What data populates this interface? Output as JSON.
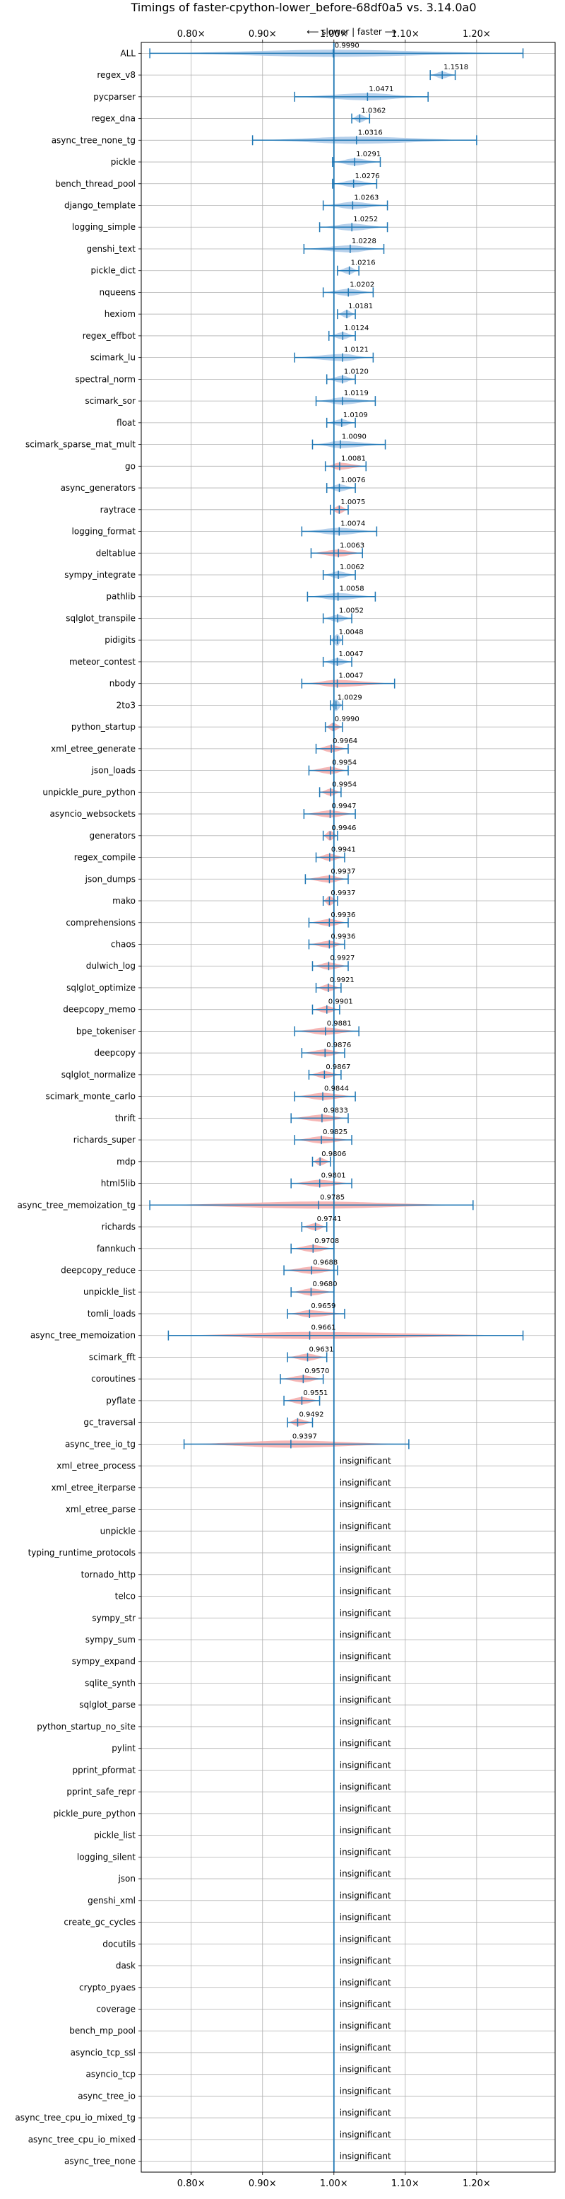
{
  "chart_data": {
    "type": "violin",
    "title": "Timings of faster-cpython-lower_before-68df0a5 vs. 3.14.0a0",
    "direction_label": "⟵ slower | faster ⟶",
    "x_scale": "ratio",
    "xlim": [
      0.73,
      1.31
    ],
    "x_ticks": [
      0.8,
      0.9,
      1.0,
      1.1,
      1.2
    ],
    "x_tick_labels": [
      "0.80×",
      "0.90×",
      "1.00×",
      "1.10×",
      "1.20×"
    ],
    "grid": true,
    "insignificant_label": "insignificant",
    "colors": {
      "faster": "#a9c8e8",
      "slower": "#f4a9a8",
      "whisker": "#1f77b4",
      "reference": "#1f77b4",
      "grid": "#b0b0b0"
    },
    "benchmarks": [
      {
        "name": "ALL",
        "value": 0.999,
        "min": 0.742,
        "max": 1.265,
        "significant": true,
        "change": "none"
      },
      {
        "name": "regex_v8",
        "value": 1.1518,
        "min": 1.135,
        "max": 1.17,
        "significant": true,
        "change": "faster"
      },
      {
        "name": "pycparser",
        "value": 1.0471,
        "min": 0.945,
        "max": 1.132,
        "significant": true,
        "change": "faster"
      },
      {
        "name": "regex_dna",
        "value": 1.0362,
        "min": 1.025,
        "max": 1.05,
        "significant": true,
        "change": "faster"
      },
      {
        "name": "async_tree_none_tg",
        "value": 1.0316,
        "min": 0.886,
        "max": 1.2,
        "significant": true,
        "change": "faster"
      },
      {
        "name": "pickle",
        "value": 1.0291,
        "min": 0.998,
        "max": 1.065,
        "significant": true,
        "change": "faster"
      },
      {
        "name": "bench_thread_pool",
        "value": 1.0276,
        "min": 0.998,
        "max": 1.06,
        "significant": true,
        "change": "faster"
      },
      {
        "name": "django_template",
        "value": 1.0263,
        "min": 0.985,
        "max": 1.075,
        "significant": true,
        "change": "faster"
      },
      {
        "name": "logging_simple",
        "value": 1.0252,
        "min": 0.98,
        "max": 1.075,
        "significant": true,
        "change": "faster"
      },
      {
        "name": "genshi_text",
        "value": 1.0228,
        "min": 0.958,
        "max": 1.07,
        "significant": true,
        "change": "faster"
      },
      {
        "name": "pickle_dict",
        "value": 1.0216,
        "min": 1.005,
        "max": 1.035,
        "significant": true,
        "change": "faster"
      },
      {
        "name": "nqueens",
        "value": 1.0202,
        "min": 0.985,
        "max": 1.055,
        "significant": true,
        "change": "faster"
      },
      {
        "name": "hexiom",
        "value": 1.0181,
        "min": 1.005,
        "max": 1.03,
        "significant": true,
        "change": "faster"
      },
      {
        "name": "regex_effbot",
        "value": 1.0124,
        "min": 0.993,
        "max": 1.03,
        "significant": true,
        "change": "faster"
      },
      {
        "name": "scimark_lu",
        "value": 1.0121,
        "min": 0.945,
        "max": 1.055,
        "significant": true,
        "change": "faster"
      },
      {
        "name": "spectral_norm",
        "value": 1.012,
        "min": 0.99,
        "max": 1.03,
        "significant": true,
        "change": "faster"
      },
      {
        "name": "scimark_sor",
        "value": 1.0119,
        "min": 0.975,
        "max": 1.058,
        "significant": true,
        "change": "faster"
      },
      {
        "name": "float",
        "value": 1.0109,
        "min": 0.99,
        "max": 1.03,
        "significant": true,
        "change": "faster"
      },
      {
        "name": "scimark_sparse_mat_mult",
        "value": 1.009,
        "min": 0.97,
        "max": 1.072,
        "significant": true,
        "change": "faster"
      },
      {
        "name": "go",
        "value": 1.0081,
        "min": 0.988,
        "max": 1.045,
        "significant": true,
        "change": "slower"
      },
      {
        "name": "async_generators",
        "value": 1.0076,
        "min": 0.99,
        "max": 1.03,
        "significant": true,
        "change": "faster"
      },
      {
        "name": "raytrace",
        "value": 1.0075,
        "min": 0.995,
        "max": 1.02,
        "significant": true,
        "change": "slower"
      },
      {
        "name": "logging_format",
        "value": 1.0074,
        "min": 0.955,
        "max": 1.06,
        "significant": true,
        "change": "faster"
      },
      {
        "name": "deltablue",
        "value": 1.0063,
        "min": 0.968,
        "max": 1.04,
        "significant": true,
        "change": "slower"
      },
      {
        "name": "sympy_integrate",
        "value": 1.0062,
        "min": 0.985,
        "max": 1.03,
        "significant": true,
        "change": "faster"
      },
      {
        "name": "pathlib",
        "value": 1.0058,
        "min": 0.963,
        "max": 1.058,
        "significant": true,
        "change": "faster"
      },
      {
        "name": "sqlglot_transpile",
        "value": 1.0052,
        "min": 0.985,
        "max": 1.025,
        "significant": true,
        "change": "faster"
      },
      {
        "name": "pidigits",
        "value": 1.0048,
        "min": 0.995,
        "max": 1.012,
        "significant": true,
        "change": "faster"
      },
      {
        "name": "meteor_contest",
        "value": 1.0047,
        "min": 0.985,
        "max": 1.025,
        "significant": true,
        "change": "faster"
      },
      {
        "name": "nbody",
        "value": 1.0047,
        "min": 0.955,
        "max": 1.085,
        "significant": true,
        "change": "slower"
      },
      {
        "name": "2to3",
        "value": 1.0029,
        "min": 0.995,
        "max": 1.012,
        "significant": true,
        "change": "faster"
      },
      {
        "name": "python_startup",
        "value": 0.999,
        "min": 0.988,
        "max": 1.012,
        "significant": true,
        "change": "slower"
      },
      {
        "name": "xml_etree_generate",
        "value": 0.9964,
        "min": 0.975,
        "max": 1.02,
        "significant": true,
        "change": "slower"
      },
      {
        "name": "json_loads",
        "value": 0.9954,
        "min": 0.965,
        "max": 1.02,
        "significant": true,
        "change": "slower"
      },
      {
        "name": "unpickle_pure_python",
        "value": 0.9954,
        "min": 0.98,
        "max": 1.01,
        "significant": true,
        "change": "slower"
      },
      {
        "name": "asyncio_websockets",
        "value": 0.9947,
        "min": 0.958,
        "max": 1.03,
        "significant": true,
        "change": "slower"
      },
      {
        "name": "generators",
        "value": 0.9946,
        "min": 0.985,
        "max": 1.005,
        "significant": true,
        "change": "slower"
      },
      {
        "name": "regex_compile",
        "value": 0.9941,
        "min": 0.975,
        "max": 1.015,
        "significant": true,
        "change": "slower"
      },
      {
        "name": "json_dumps",
        "value": 0.9937,
        "min": 0.96,
        "max": 1.02,
        "significant": true,
        "change": "slower"
      },
      {
        "name": "mako",
        "value": 0.9937,
        "min": 0.985,
        "max": 1.005,
        "significant": true,
        "change": "slower"
      },
      {
        "name": "comprehensions",
        "value": 0.9936,
        "min": 0.965,
        "max": 1.02,
        "significant": true,
        "change": "slower"
      },
      {
        "name": "chaos",
        "value": 0.9936,
        "min": 0.965,
        "max": 1.015,
        "significant": true,
        "change": "slower"
      },
      {
        "name": "dulwich_log",
        "value": 0.9927,
        "min": 0.97,
        "max": 1.02,
        "significant": true,
        "change": "slower"
      },
      {
        "name": "sqlglot_optimize",
        "value": 0.9921,
        "min": 0.975,
        "max": 1.01,
        "significant": true,
        "change": "slower"
      },
      {
        "name": "deepcopy_memo",
        "value": 0.9901,
        "min": 0.97,
        "max": 1.008,
        "significant": true,
        "change": "slower"
      },
      {
        "name": "bpe_tokeniser",
        "value": 0.9881,
        "min": 0.945,
        "max": 1.035,
        "significant": true,
        "change": "slower"
      },
      {
        "name": "deepcopy",
        "value": 0.9876,
        "min": 0.955,
        "max": 1.015,
        "significant": true,
        "change": "slower"
      },
      {
        "name": "sqlglot_normalize",
        "value": 0.9867,
        "min": 0.965,
        "max": 1.01,
        "significant": true,
        "change": "slower"
      },
      {
        "name": "scimark_monte_carlo",
        "value": 0.9844,
        "min": 0.945,
        "max": 1.03,
        "significant": true,
        "change": "slower"
      },
      {
        "name": "thrift",
        "value": 0.9833,
        "min": 0.94,
        "max": 1.02,
        "significant": true,
        "change": "slower"
      },
      {
        "name": "richards_super",
        "value": 0.9825,
        "min": 0.945,
        "max": 1.025,
        "significant": true,
        "change": "slower"
      },
      {
        "name": "mdp",
        "value": 0.9806,
        "min": 0.97,
        "max": 0.995,
        "significant": true,
        "change": "slower"
      },
      {
        "name": "html5lib",
        "value": 0.9801,
        "min": 0.94,
        "max": 1.025,
        "significant": true,
        "change": "slower"
      },
      {
        "name": "async_tree_memoization_tg",
        "value": 0.9785,
        "min": 0.742,
        "max": 1.195,
        "significant": true,
        "change": "slower"
      },
      {
        "name": "richards",
        "value": 0.9741,
        "min": 0.955,
        "max": 0.99,
        "significant": true,
        "change": "slower"
      },
      {
        "name": "fannkuch",
        "value": 0.9708,
        "min": 0.94,
        "max": 1.0,
        "significant": true,
        "change": "slower"
      },
      {
        "name": "deepcopy_reduce",
        "value": 0.9688,
        "min": 0.93,
        "max": 1.005,
        "significant": true,
        "change": "slower"
      },
      {
        "name": "unpickle_list",
        "value": 0.968,
        "min": 0.94,
        "max": 1.0,
        "significant": true,
        "change": "slower"
      },
      {
        "name": "tomli_loads",
        "value": 0.9659,
        "min": 0.935,
        "max": 1.015,
        "significant": true,
        "change": "slower"
      },
      {
        "name": "async_tree_memoization",
        "value": 0.9661,
        "min": 0.768,
        "max": 1.265,
        "significant": true,
        "change": "slower"
      },
      {
        "name": "scimark_fft",
        "value": 0.9631,
        "min": 0.935,
        "max": 0.99,
        "significant": true,
        "change": "slower"
      },
      {
        "name": "coroutines",
        "value": 0.957,
        "min": 0.925,
        "max": 0.985,
        "significant": true,
        "change": "slower"
      },
      {
        "name": "pyflate",
        "value": 0.9551,
        "min": 0.93,
        "max": 0.98,
        "significant": true,
        "change": "slower"
      },
      {
        "name": "gc_traversal",
        "value": 0.9492,
        "min": 0.935,
        "max": 0.97,
        "significant": true,
        "change": "slower"
      },
      {
        "name": "async_tree_io_tg",
        "value": 0.9397,
        "min": 0.79,
        "max": 1.105,
        "significant": true,
        "change": "slower"
      },
      {
        "name": "xml_etree_process",
        "significant": false
      },
      {
        "name": "xml_etree_iterparse",
        "significant": false
      },
      {
        "name": "xml_etree_parse",
        "significant": false
      },
      {
        "name": "unpickle",
        "significant": false
      },
      {
        "name": "typing_runtime_protocols",
        "significant": false
      },
      {
        "name": "tornado_http",
        "significant": false
      },
      {
        "name": "telco",
        "significant": false
      },
      {
        "name": "sympy_str",
        "significant": false
      },
      {
        "name": "sympy_sum",
        "significant": false
      },
      {
        "name": "sympy_expand",
        "significant": false
      },
      {
        "name": "sqlite_synth",
        "significant": false
      },
      {
        "name": "sqlglot_parse",
        "significant": false
      },
      {
        "name": "python_startup_no_site",
        "significant": false
      },
      {
        "name": "pylint",
        "significant": false
      },
      {
        "name": "pprint_pformat",
        "significant": false
      },
      {
        "name": "pprint_safe_repr",
        "significant": false
      },
      {
        "name": "pickle_pure_python",
        "significant": false
      },
      {
        "name": "pickle_list",
        "significant": false
      },
      {
        "name": "logging_silent",
        "significant": false
      },
      {
        "name": "json",
        "significant": false
      },
      {
        "name": "genshi_xml",
        "significant": false
      },
      {
        "name": "create_gc_cycles",
        "significant": false
      },
      {
        "name": "docutils",
        "significant": false
      },
      {
        "name": "dask",
        "significant": false
      },
      {
        "name": "crypto_pyaes",
        "significant": false
      },
      {
        "name": "coverage",
        "significant": false
      },
      {
        "name": "bench_mp_pool",
        "significant": false
      },
      {
        "name": "asyncio_tcp_ssl",
        "significant": false
      },
      {
        "name": "asyncio_tcp",
        "significant": false
      },
      {
        "name": "async_tree_io",
        "significant": false
      },
      {
        "name": "async_tree_cpu_io_mixed_tg",
        "significant": false
      },
      {
        "name": "async_tree_cpu_io_mixed",
        "significant": false
      },
      {
        "name": "async_tree_none",
        "significant": false
      }
    ]
  }
}
